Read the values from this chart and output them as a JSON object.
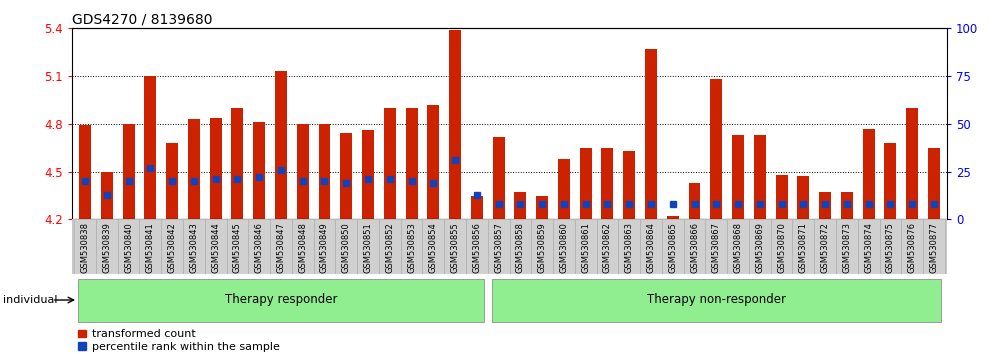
{
  "title": "GDS4270 / 8139680",
  "samples": [
    "GSM530838",
    "GSM530839",
    "GSM530840",
    "GSM530841",
    "GSM530842",
    "GSM530843",
    "GSM530844",
    "GSM530845",
    "GSM530846",
    "GSM530847",
    "GSM530848",
    "GSM530849",
    "GSM530850",
    "GSM530851",
    "GSM530852",
    "GSM530853",
    "GSM530854",
    "GSM530855",
    "GSM530856",
    "GSM530857",
    "GSM530858",
    "GSM530859",
    "GSM530860",
    "GSM530861",
    "GSM530862",
    "GSM530863",
    "GSM530864",
    "GSM530865",
    "GSM530866",
    "GSM530867",
    "GSM530868",
    "GSM530869",
    "GSM530870",
    "GSM530871",
    "GSM530872",
    "GSM530873",
    "GSM530874",
    "GSM530875",
    "GSM530876",
    "GSM530877"
  ],
  "bar_values": [
    4.79,
    4.5,
    4.8,
    5.1,
    4.68,
    4.83,
    4.84,
    4.9,
    4.81,
    5.13,
    4.8,
    4.8,
    4.74,
    4.76,
    4.9,
    4.9,
    4.92,
    5.39,
    4.35,
    4.72,
    4.37,
    4.35,
    4.58,
    4.65,
    4.65,
    4.63,
    5.27,
    4.22,
    4.43,
    5.08,
    4.73,
    4.73,
    4.48,
    4.47,
    4.37,
    4.37,
    4.77,
    4.68,
    4.9,
    4.65
  ],
  "percentile_values": [
    4.44,
    4.36,
    4.44,
    4.52,
    4.44,
    4.44,
    4.45,
    4.45,
    4.46,
    4.51,
    4.44,
    4.44,
    4.43,
    4.45,
    4.45,
    4.44,
    4.43,
    4.57,
    4.35,
    4.33,
    4.32,
    4.32,
    4.32,
    4.32,
    4.32,
    4.32,
    4.33,
    4.32,
    4.32,
    4.33,
    4.33,
    4.33,
    4.32,
    4.32,
    4.32,
    4.32,
    4.33,
    4.33,
    4.33,
    4.32
  ],
  "group_labels": [
    "Therapy responder",
    "Therapy non-responder"
  ],
  "group_split": 19,
  "n_samples": 40,
  "bar_color": "#cc2200",
  "blue_color": "#1144bb",
  "ylim_left": [
    4.2,
    5.4
  ],
  "ylim_right": [
    0,
    100
  ],
  "yticks_left": [
    4.2,
    4.5,
    4.8,
    5.1,
    5.4
  ],
  "yticks_right": [
    0,
    25,
    50,
    75,
    100
  ],
  "bar_width": 0.55
}
